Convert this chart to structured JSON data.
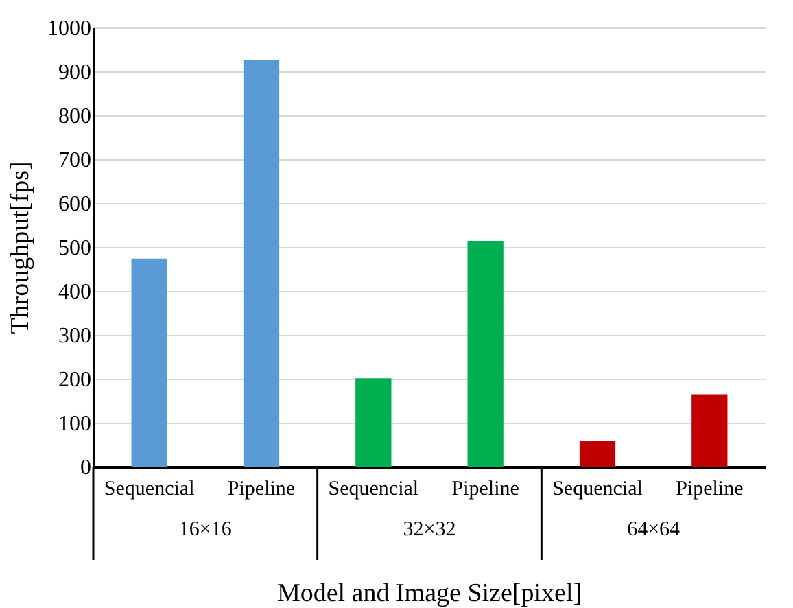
{
  "chart_data": {
    "type": "bar",
    "xlabel": "Model and Image Size[pixel]",
    "ylabel": "Throughput[fps]",
    "categories": [
      "Sequencial",
      "Pipeline",
      "Sequencial",
      "Pipeline",
      "Sequencial",
      "Pipeline"
    ],
    "values": [
      474,
      925,
      201,
      514,
      59,
      165
    ],
    "colors": [
      "#5b9bd5",
      "#5b9bd5",
      "#00b050",
      "#00b050",
      "#c00000",
      "#c00000"
    ],
    "ylim": [
      0,
      1000
    ],
    "yticks": [
      0,
      100,
      200,
      300,
      400,
      500,
      600,
      700,
      800,
      900,
      1000
    ],
    "grid": "y",
    "annotations": [
      "16×16",
      "32×32",
      "64×64"
    ]
  }
}
